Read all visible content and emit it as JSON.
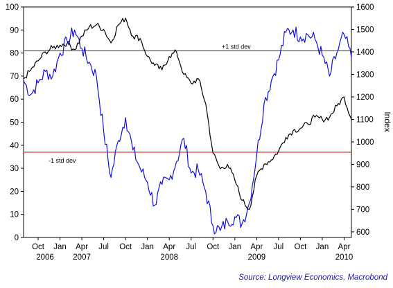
{
  "chart_data": {
    "type": "line",
    "source": "Source: Longview Economics, Macrobond",
    "y_left": {
      "ylim": [
        0,
        100
      ],
      "ticks": [
        "0",
        "10",
        "20",
        "30",
        "40",
        "50",
        "60",
        "70",
        "80",
        "90",
        "100"
      ]
    },
    "y_right": {
      "label": "Index",
      "ylim": [
        575,
        1600
      ],
      "ticks": [
        "600",
        "700",
        "800",
        "900",
        "1000",
        "1100",
        "1200",
        "1300",
        "1400",
        "1500",
        "1600"
      ]
    },
    "x_ticks": [
      "Oct",
      "Jan",
      "Apr",
      "Jul",
      "Oct",
      "Jan",
      "Apr",
      "Jul",
      "Oct",
      "Jan",
      "Apr",
      "Jul",
      "Oct",
      "Jan",
      "Apr"
    ],
    "x_years": [
      "2006",
      "2007",
      "2008",
      "2009",
      "2010"
    ],
    "reference_lines": [
      {
        "label": "+1 std dev",
        "value": 81,
        "color": "#555555"
      },
      {
        "label": "-1 std dev",
        "value": 37,
        "color": "#e8302a"
      }
    ],
    "series": [
      {
        "axis": "left",
        "color": "#1010dd",
        "x": [
          "2006-08",
          "2006-09",
          "2006-10",
          "2006-11",
          "2006-12",
          "2007-01",
          "2007-02",
          "2007-03",
          "2007-04",
          "2007-05",
          "2007-06",
          "2007-07",
          "2007-08",
          "2007-09",
          "2007-10",
          "2007-11",
          "2007-12",
          "2008-01",
          "2008-02",
          "2008-03",
          "2008-04",
          "2008-05",
          "2008-06",
          "2008-07",
          "2008-08",
          "2008-09",
          "2008-10",
          "2008-11",
          "2008-12",
          "2009-01",
          "2009-02",
          "2009-03",
          "2009-04",
          "2009-05",
          "2009-06",
          "2009-07",
          "2009-08",
          "2009-09",
          "2009-10",
          "2009-11",
          "2009-12",
          "2010-01",
          "2010-02",
          "2010-03",
          "2010-04",
          "2010-05"
        ],
        "values": [
          68,
          62,
          67,
          72,
          70,
          80,
          85,
          90,
          82,
          76,
          70,
          46,
          26,
          42,
          52,
          38,
          30,
          24,
          14,
          23,
          25,
          33,
          43,
          28,
          29,
          20,
          5,
          3,
          7,
          9,
          6,
          15,
          36,
          58,
          68,
          77,
          89,
          90,
          87,
          88,
          86,
          79,
          70,
          80,
          88,
          78
        ]
      },
      {
        "axis": "right",
        "color": "#000000",
        "x": [
          "2006-08",
          "2006-09",
          "2006-10",
          "2006-11",
          "2006-12",
          "2007-01",
          "2007-02",
          "2007-03",
          "2007-04",
          "2007-05",
          "2007-06",
          "2007-07",
          "2007-08",
          "2007-09",
          "2007-10",
          "2007-11",
          "2007-12",
          "2008-01",
          "2008-02",
          "2008-03",
          "2008-04",
          "2008-05",
          "2008-06",
          "2008-07",
          "2008-08",
          "2008-09",
          "2008-10",
          "2008-11",
          "2008-12",
          "2009-01",
          "2009-02",
          "2009-03",
          "2009-04",
          "2009-05",
          "2009-06",
          "2009-07",
          "2009-08",
          "2009-09",
          "2009-10",
          "2009-11",
          "2009-12",
          "2010-01",
          "2010-02",
          "2010-03",
          "2010-04",
          "2010-05"
        ],
        "values": [
          1280,
          1320,
          1360,
          1400,
          1418,
          1430,
          1440,
          1410,
          1470,
          1510,
          1520,
          1500,
          1440,
          1520,
          1550,
          1470,
          1460,
          1380,
          1340,
          1320,
          1380,
          1400,
          1300,
          1260,
          1280,
          1170,
          950,
          880,
          900,
          830,
          740,
          700,
          850,
          900,
          920,
          960,
          1020,
          1050,
          1060,
          1080,
          1110,
          1100,
          1110,
          1160,
          1200,
          1100
        ]
      }
    ]
  }
}
